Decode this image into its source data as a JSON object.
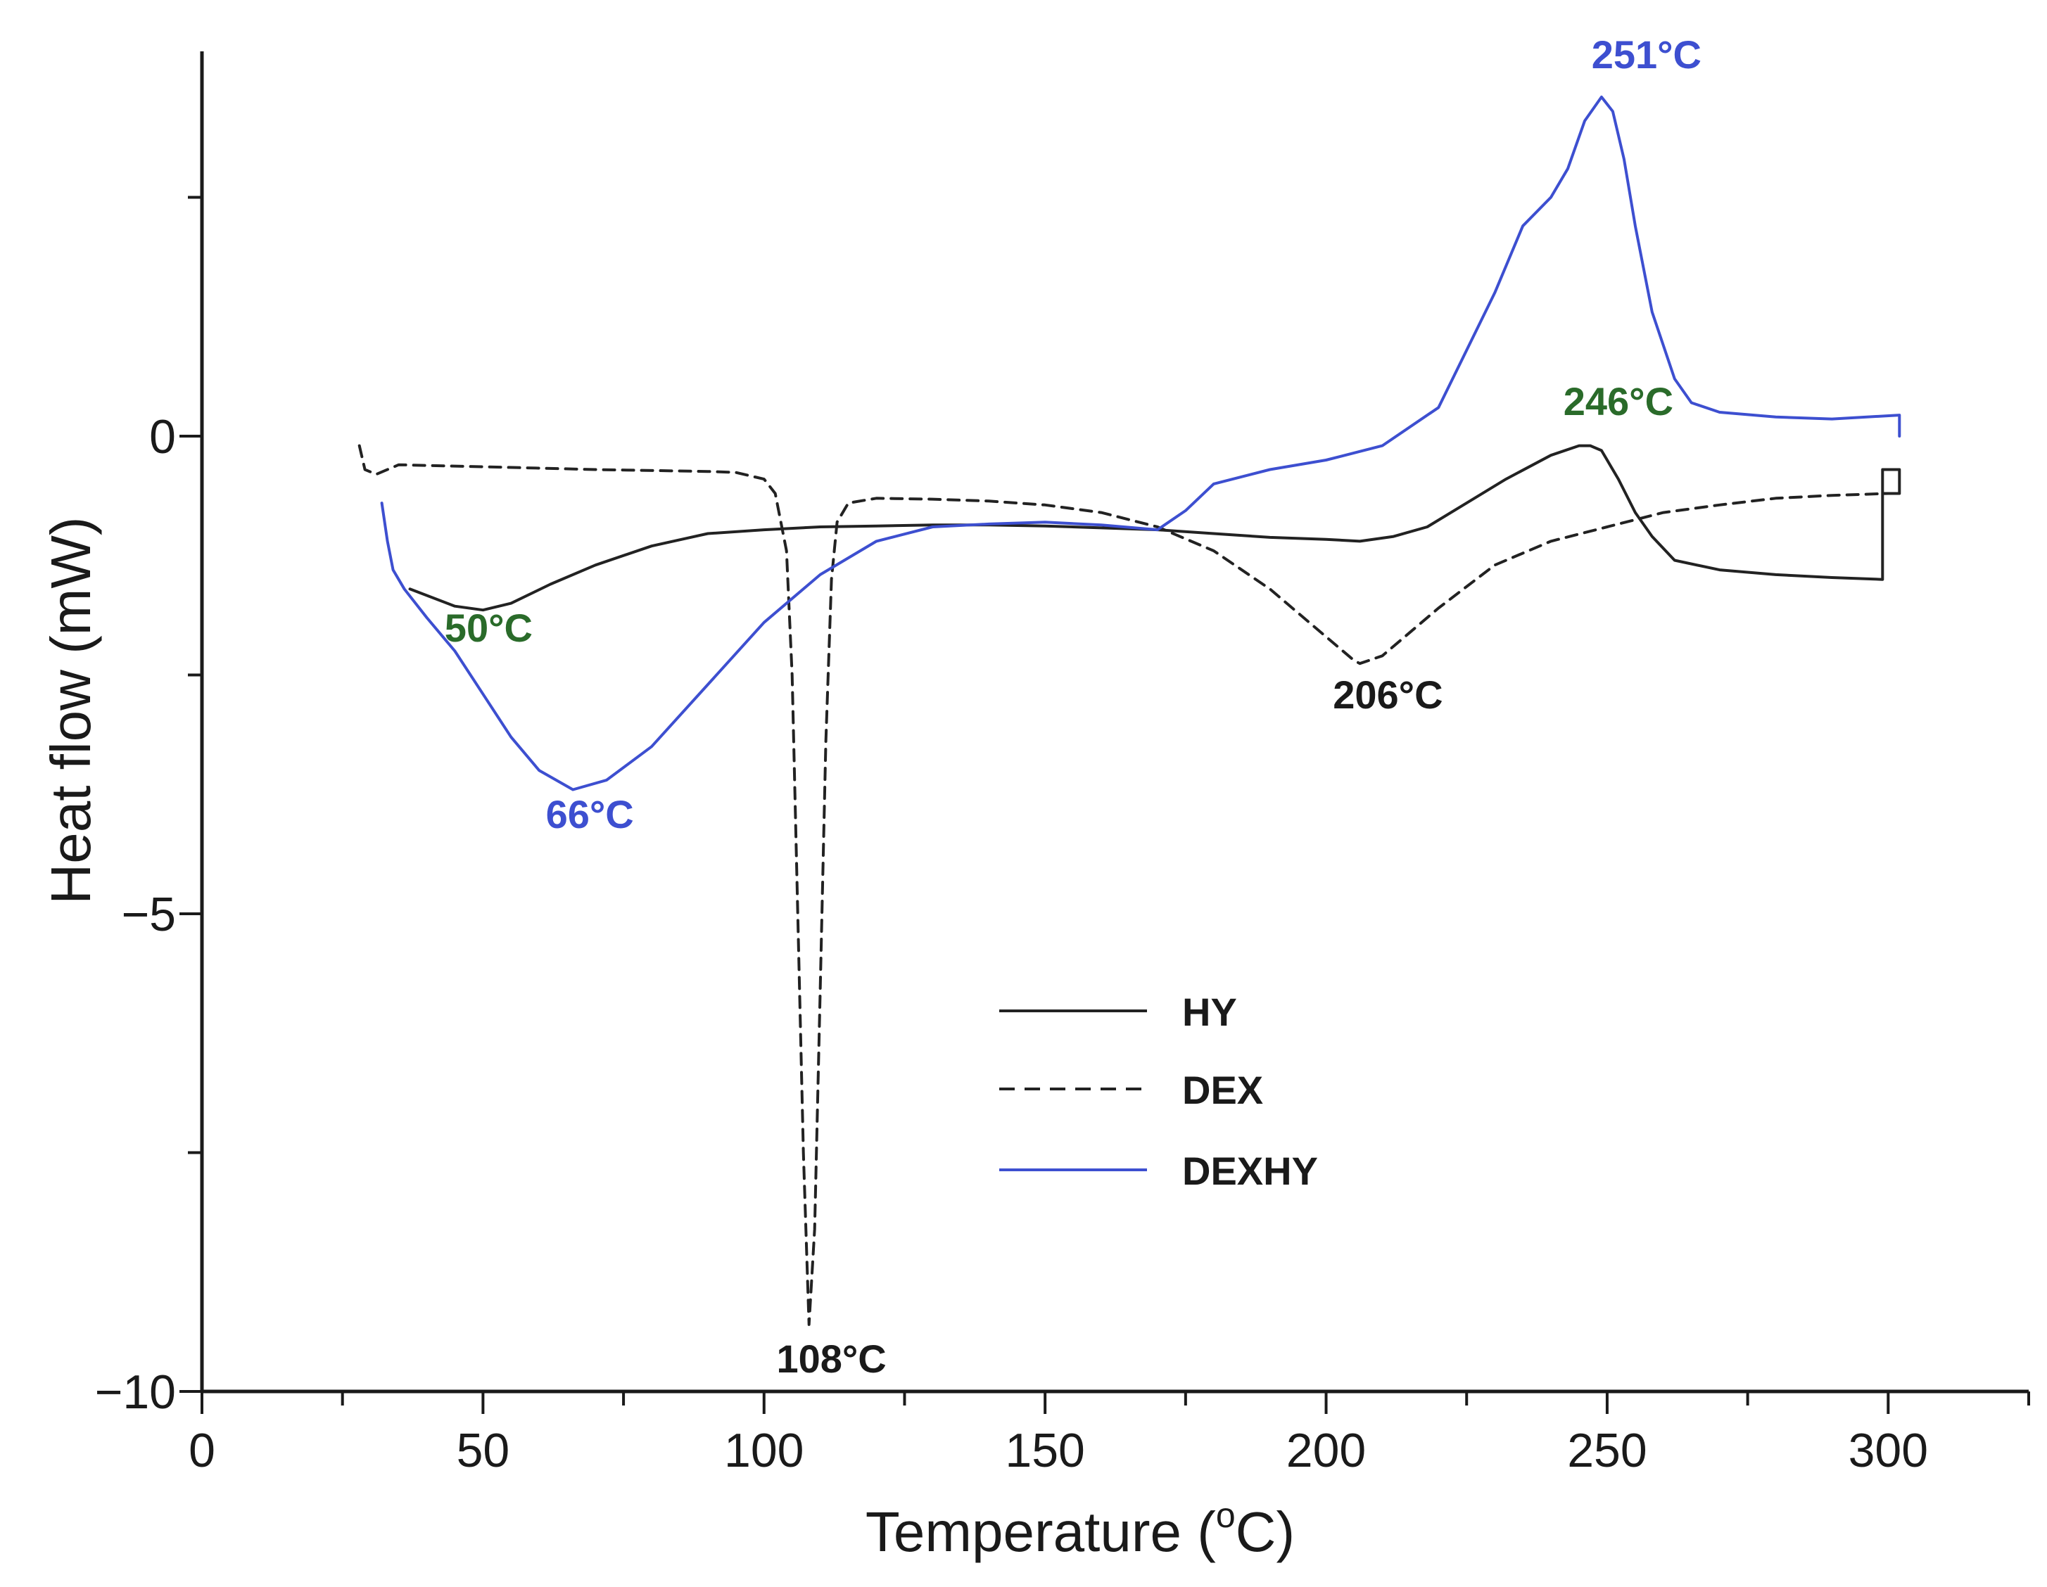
{
  "chart_data": {
    "type": "line",
    "title": "",
    "xlabel": "Temperature (",
    "xlabel_sup": "o",
    "xlabel_suffix": "C)",
    "ylabel": "Heat flow (mW)",
    "xlim": [
      0,
      325
    ],
    "ylim": [
      -10,
      4.3
    ],
    "x_ticks": [
      0,
      50,
      100,
      150,
      200,
      250,
      300
    ],
    "x_tick_labels": [
      "0",
      "50",
      "100",
      "150",
      "200",
      "250",
      "300"
    ],
    "y_ticks": [
      -10,
      -5,
      0
    ],
    "y_tick_labels": [
      "−10",
      "−5",
      "0"
    ],
    "grid": false,
    "legend_position": "center-bottom",
    "series": [
      {
        "name": "HY",
        "color": "#222222",
        "dash": "solid",
        "x": [
          37,
          45,
          50,
          55,
          62,
          70,
          80,
          90,
          100,
          110,
          120,
          130,
          140,
          150,
          160,
          170,
          180,
          190,
          200,
          206,
          212,
          218,
          225,
          232,
          240,
          245,
          247,
          249,
          252,
          255,
          258,
          262,
          270,
          280,
          290,
          299,
          299,
          302,
          302,
          299
        ],
        "y": [
          -1.6,
          -1.78,
          -1.82,
          -1.75,
          -1.55,
          -1.35,
          -1.15,
          -1.02,
          -0.98,
          -0.95,
          -0.94,
          -0.93,
          -0.93,
          -0.94,
          -0.96,
          -0.98,
          -1.02,
          -1.06,
          -1.08,
          -1.1,
          -1.05,
          -0.95,
          -0.7,
          -0.45,
          -0.2,
          -0.1,
          -0.1,
          -0.15,
          -0.45,
          -0.8,
          -1.05,
          -1.3,
          -1.4,
          -1.45,
          -1.48,
          -1.5,
          -0.35,
          -0.35,
          -0.6,
          -0.6
        ]
      },
      {
        "name": "DEX",
        "color": "#222222",
        "dash": "dashed",
        "x": [
          28,
          29,
          31,
          35,
          50,
          70,
          90,
          95,
          100,
          102,
          104,
          105,
          106,
          107,
          108,
          109,
          110,
          111,
          112,
          113,
          115,
          120,
          130,
          140,
          150,
          160,
          170,
          180,
          190,
          200,
          205,
          206,
          210,
          220,
          230,
          240,
          250,
          260,
          270,
          280,
          290,
          300
        ],
        "y": [
          -0.1,
          -0.35,
          -0.4,
          -0.3,
          -0.32,
          -0.35,
          -0.37,
          -0.38,
          -0.45,
          -0.6,
          -1.2,
          -2.5,
          -5.0,
          -7.5,
          -9.3,
          -8.3,
          -5.8,
          -3.2,
          -1.5,
          -0.9,
          -0.7,
          -0.65,
          -0.66,
          -0.68,
          -0.72,
          -0.8,
          -0.95,
          -1.2,
          -1.6,
          -2.1,
          -2.35,
          -2.38,
          -2.3,
          -1.8,
          -1.35,
          -1.1,
          -0.95,
          -0.8,
          -0.72,
          -0.65,
          -0.62,
          -0.6
        ]
      },
      {
        "name": "DEXHY",
        "color": "#3d4fd0",
        "dash": "solid",
        "x": [
          32,
          33,
          34,
          36,
          40,
          45,
          50,
          55,
          60,
          66,
          72,
          80,
          90,
          100,
          110,
          120,
          130,
          140,
          150,
          160,
          170,
          175,
          180,
          190,
          200,
          210,
          220,
          230,
          235,
          240,
          243,
          246,
          249,
          251,
          253,
          255,
          258,
          262,
          265,
          270,
          280,
          290,
          302,
          302
        ],
        "y": [
          -0.7,
          -1.1,
          -1.4,
          -1.6,
          -1.9,
          -2.25,
          -2.7,
          -3.15,
          -3.5,
          -3.7,
          -3.6,
          -3.25,
          -2.6,
          -1.95,
          -1.45,
          -1.1,
          -0.95,
          -0.92,
          -0.9,
          -0.93,
          -0.98,
          -0.78,
          -0.5,
          -0.35,
          -0.25,
          -0.1,
          0.3,
          1.5,
          2.2,
          2.5,
          2.8,
          3.3,
          3.55,
          3.4,
          2.9,
          2.2,
          1.3,
          0.6,
          0.35,
          0.25,
          0.2,
          0.18,
          0.22,
          0.0
        ]
      }
    ],
    "annotations": [
      {
        "text": "50°C",
        "x": 51,
        "y": -2.15,
        "color": "#2a6b2a"
      },
      {
        "text": "66°C",
        "x": 69,
        "y": -4.1,
        "color": "#3d4fd0"
      },
      {
        "text": "108°C",
        "x": 112,
        "y": -9.8,
        "color": "#1a1a1a"
      },
      {
        "text": "206°C",
        "x": 211,
        "y": -2.85,
        "color": "#1a1a1a"
      },
      {
        "text": "246°C",
        "x": 252,
        "y": 0.22,
        "color": "#2a6b2a"
      },
      {
        "text": "251°C",
        "x": 257,
        "y": 3.85,
        "color": "#3d4fd0"
      }
    ]
  }
}
